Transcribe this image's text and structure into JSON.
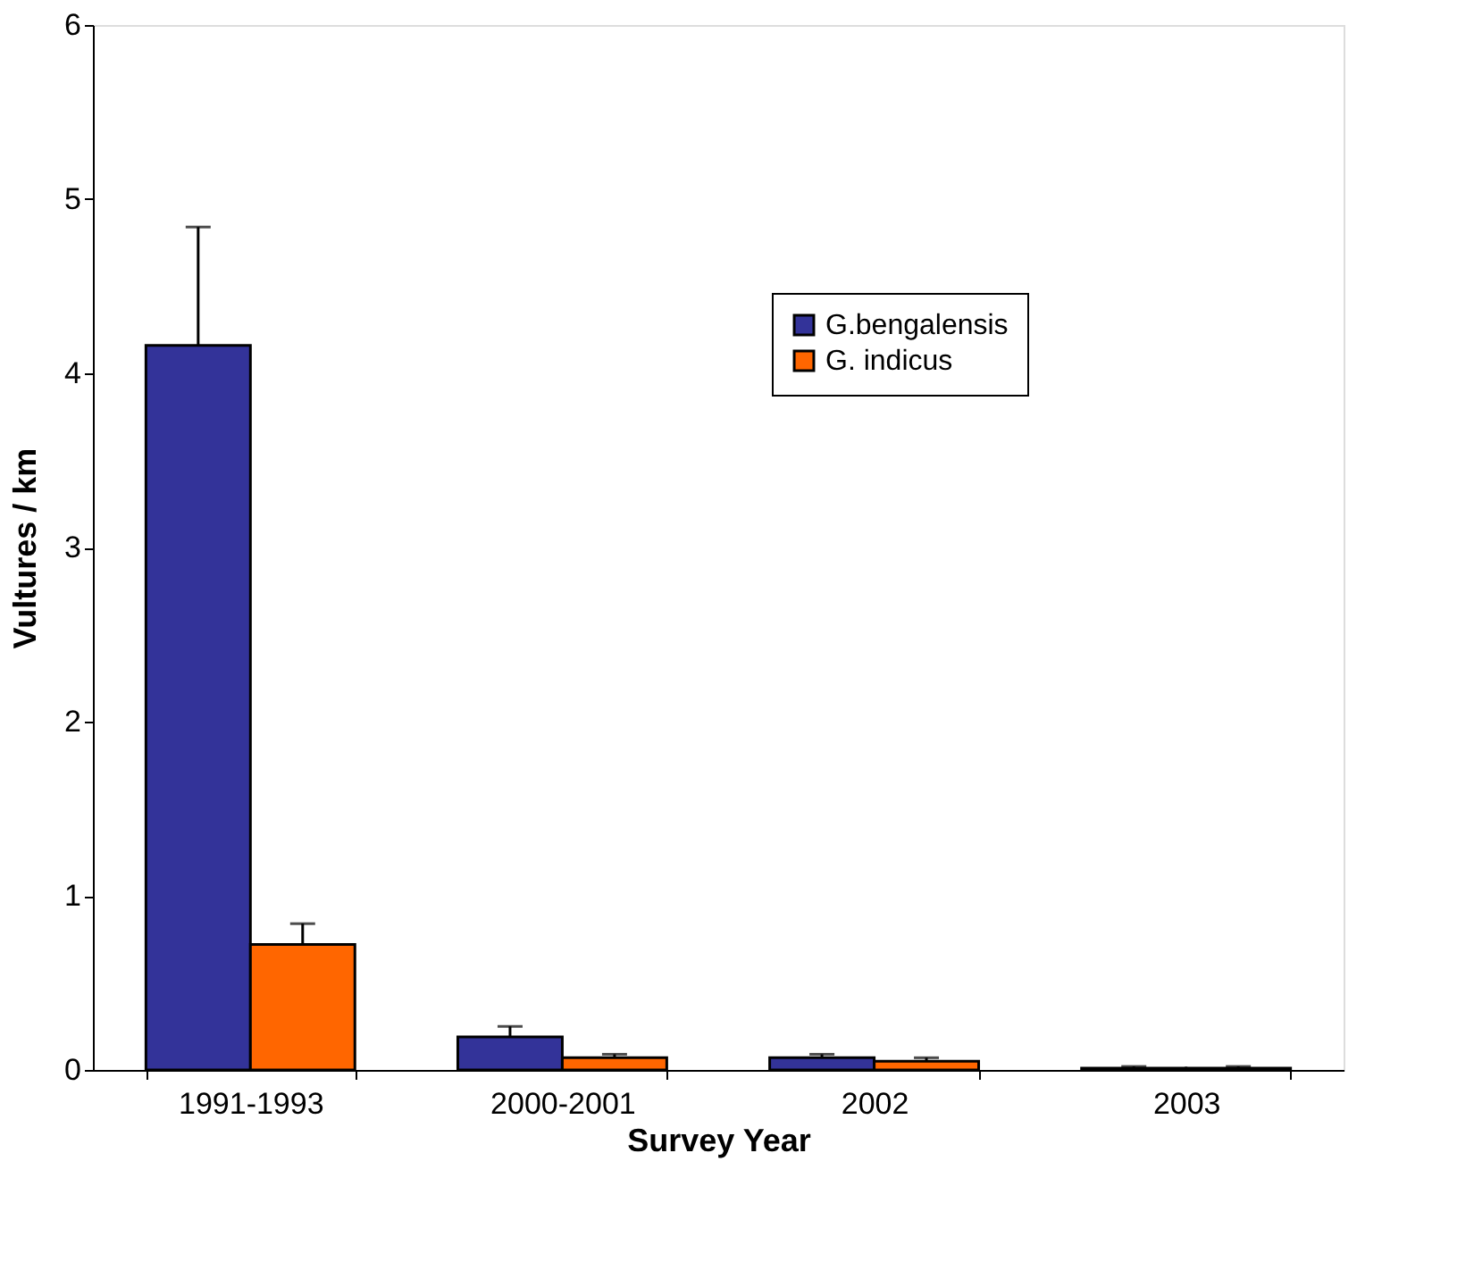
{
  "chart_data": {
    "type": "bar",
    "xlabel": "Survey Year",
    "ylabel": "Vultures / km",
    "categories": [
      "1991-1993",
      "2000-2001",
      "2002",
      "2003"
    ],
    "series": [
      {
        "name": "G.bengalensis",
        "color": "#333399",
        "values": [
          4.16,
          0.19,
          0.07,
          0.01
        ],
        "errors": [
          0.68,
          0.06,
          0.02,
          0.01
        ]
      },
      {
        "name": "G. indicus",
        "color": "#ff6600",
        "values": [
          0.72,
          0.07,
          0.05,
          0.01
        ],
        "errors": [
          0.12,
          0.02,
          0.02,
          0.01
        ]
      }
    ],
    "ylim": [
      0,
      6
    ],
    "yticks": [
      0,
      1,
      2,
      3,
      4,
      5,
      6
    ],
    "grid": false,
    "legend": "top right"
  }
}
